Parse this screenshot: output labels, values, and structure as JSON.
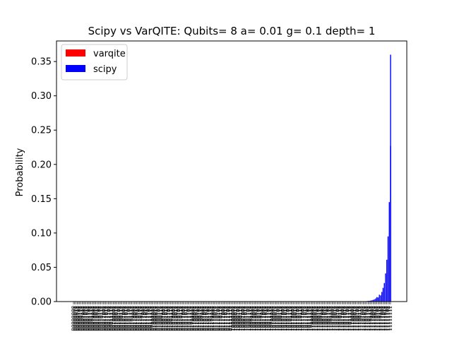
{
  "chart_data": {
    "type": "bar",
    "title": "Scipy vs VarQITE: Qubits= 8 a= 0.01 g= 0.1 depth= 1",
    "xlabel": "",
    "ylabel": "Probability",
    "ylim": [
      0,
      0.38
    ],
    "yticks": [
      0.0,
      0.05,
      0.1,
      0.15,
      0.2,
      0.25,
      0.3,
      0.35
    ],
    "ytick_labels": [
      "0.00",
      "0.05",
      "0.10",
      "0.15",
      "0.20",
      "0.25",
      "0.30",
      "0.35"
    ],
    "legend_position": "top-left",
    "grid": false,
    "series": [
      {
        "name": "varqite",
        "color": "#ff0000"
      },
      {
        "name": "scipy",
        "color": "#0000ff"
      }
    ],
    "categories": [
      "00000000",
      "00000001",
      "00000010",
      "00000011",
      "00000100",
      "00000101",
      "00000110",
      "00000111",
      "00001000",
      "00001001",
      "00001010",
      "00001011",
      "00001100",
      "00001101",
      "00001110",
      "00001111",
      "00010000",
      "00010001",
      "00010010",
      "00010011",
      "00010100",
      "00010101",
      "00010110",
      "00010111",
      "00011000",
      "00011001",
      "00011010",
      "00011011",
      "00011100",
      "00011101",
      "00011110",
      "00011111",
      "00100000",
      "00100001",
      "00100010",
      "00100011",
      "00100100",
      "00100101",
      "00100110",
      "00100111",
      "00101000",
      "00101001",
      "00101010",
      "00101011",
      "00101100",
      "00101101",
      "00101110",
      "00101111",
      "00110000",
      "00110001",
      "00110010",
      "00110011",
      "00110100",
      "00110101",
      "00110110",
      "00110111",
      "00111000",
      "00111001",
      "00111010",
      "00111011",
      "00111100",
      "00111101",
      "00111110",
      "00111111",
      "01000000",
      "01000001",
      "01000010",
      "01000011",
      "01000100",
      "01000101",
      "01000110",
      "01000111",
      "01001000",
      "01001001",
      "01001010",
      "01001011",
      "01001100",
      "01001101",
      "01001110",
      "01001111",
      "01010000",
      "01010001",
      "01010010",
      "01010011",
      "01010100",
      "01010101",
      "01010110",
      "01010111",
      "01011000",
      "01011001",
      "01011010",
      "01011011",
      "01011100",
      "01011101",
      "01011110",
      "01011111",
      "01100000",
      "01100001",
      "01100010",
      "01100011",
      "01100100",
      "01100101",
      "01100110",
      "01100111",
      "01101000",
      "01101001",
      "01101010",
      "01101011",
      "01101100",
      "01101101",
      "01101110",
      "01101111",
      "01110000",
      "01110001",
      "01110010",
      "01110011",
      "01110100",
      "01110101",
      "01110110",
      "01110111",
      "01111000",
      "01111001",
      "01111010",
      "01111011",
      "01111100",
      "01111101",
      "01111110",
      "01111111",
      "10000000",
      "10000001",
      "10000010",
      "10000011",
      "10000100",
      "10000101",
      "10000110",
      "10000111",
      "10001000",
      "10001001",
      "10001010",
      "10001011",
      "10001100",
      "10001101",
      "10001110",
      "10001111",
      "10010000",
      "10010001",
      "10010010",
      "10010011",
      "10010100",
      "10010101",
      "10010110",
      "10010111",
      "10011000",
      "10011001",
      "10011010",
      "10011011",
      "10011100",
      "10011101",
      "10011110",
      "10011111",
      "10100000",
      "10100001",
      "10100010",
      "10100011",
      "10100100",
      "10100101",
      "10100110",
      "10100111",
      "10101000",
      "10101001",
      "10101010",
      "10101011",
      "10101100",
      "10101101",
      "10101110",
      "10101111",
      "10110000",
      "10110001",
      "10110010",
      "10110011",
      "10110100",
      "10110101",
      "10110110",
      "10110111",
      "10111000",
      "10111001",
      "10111010",
      "10111011",
      "10111100",
      "10111101",
      "10111110",
      "10111111",
      "11000000",
      "11000001",
      "11000010",
      "11000011",
      "11000100",
      "11000101",
      "11000110",
      "11000111",
      "11001000",
      "11001001",
      "11001010",
      "11001011",
      "11001100",
      "11001101",
      "11001110",
      "11001111",
      "11010000",
      "11010001",
      "11010010",
      "11010011",
      "11010100",
      "11010101",
      "11010110",
      "11010111",
      "11011000",
      "11011001",
      "11011010",
      "11011011",
      "11011100",
      "11011101",
      "11011110",
      "11011111",
      "11100000",
      "11100001",
      "11100010",
      "11100011",
      "11100100",
      "11100101",
      "11100110",
      "11100111",
      "11101000",
      "11101001",
      "11101010",
      "11101011",
      "11101100",
      "11101101",
      "11101110",
      "11101111",
      "11110000",
      "11110001",
      "11110010",
      "11110011",
      "11110100",
      "11110101",
      "11110110",
      "11110111",
      "11111000",
      "11111001",
      "11111010",
      "11111011",
      "11111100",
      "11111101",
      "11111110",
      "11111111"
    ],
    "tail_values": [
      {
        "index": 236,
        "value": 0.0007
      },
      {
        "index": 237,
        "value": 0.0009
      },
      {
        "index": 238,
        "value": 0.0011
      },
      {
        "index": 239,
        "value": 0.0014
      },
      {
        "index": 240,
        "value": 0.0018
      },
      {
        "index": 241,
        "value": 0.0024
      },
      {
        "index": 242,
        "value": 0.0032
      },
      {
        "index": 243,
        "value": 0.0045
      },
      {
        "index": 244,
        "value": 0.0065
      },
      {
        "index": 245,
        "value": 0.006
      },
      {
        "index": 246,
        "value": 0.01
      },
      {
        "index": 247,
        "value": 0.009
      },
      {
        "index": 248,
        "value": 0.014
      },
      {
        "index": 249,
        "value": 0.02
      },
      {
        "index": 250,
        "value": 0.027
      },
      {
        "index": 251,
        "value": 0.041
      },
      {
        "index": 252,
        "value": 0.061
      },
      {
        "index": 253,
        "value": 0.095
      },
      {
        "index": 254,
        "value": 0.145
      },
      {
        "index": 255,
        "value": 0.227
      },
      {
        "index": 256,
        "value": 0.36
      }
    ]
  }
}
